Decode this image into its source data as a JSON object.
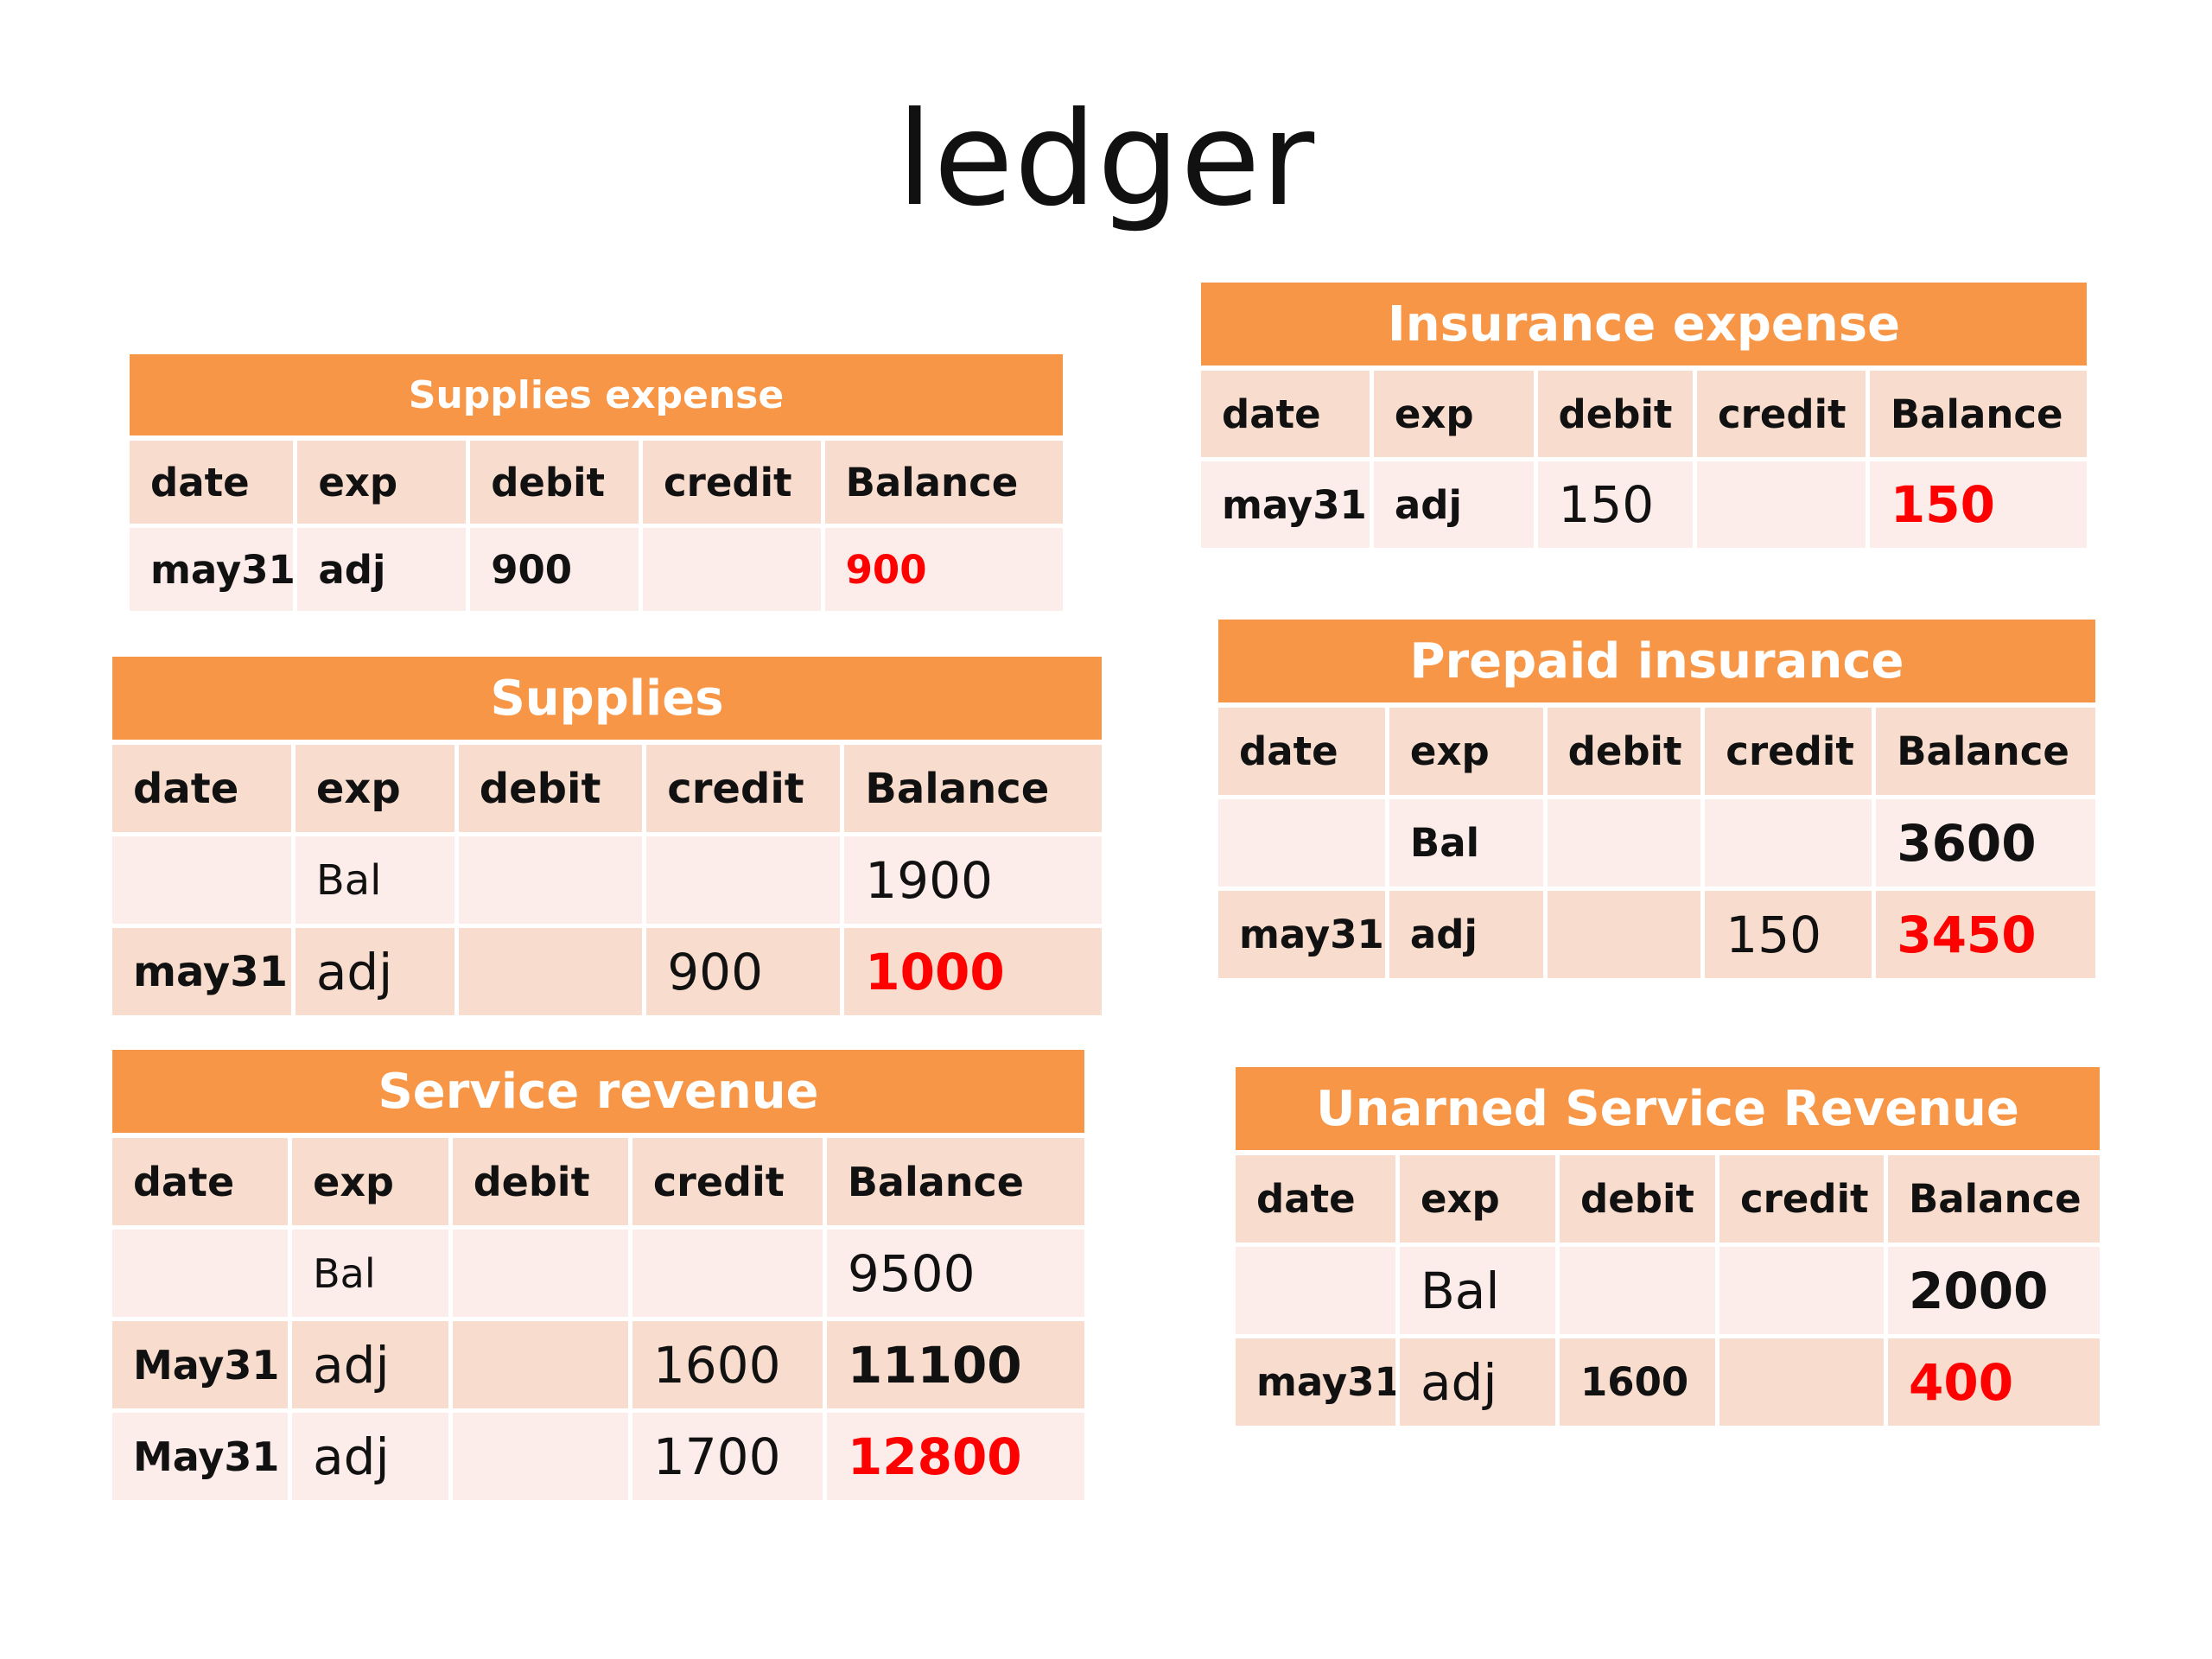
{
  "title": "ledger",
  "columns": [
    "date",
    "exp",
    "debit",
    "credit",
    "Balance"
  ],
  "colors": {
    "header": "#f79646",
    "row_dark": "#f8dccd",
    "row_light": "#fcecea",
    "highlight": "#ff0000"
  },
  "supplies_expense": {
    "title": "Supplies expense",
    "rows": [
      {
        "date": "may31",
        "exp": "adj",
        "debit": "900",
        "credit": "",
        "balance": "900"
      }
    ]
  },
  "supplies": {
    "title": "Supplies",
    "rows": [
      {
        "date": "",
        "exp": "Bal",
        "debit": "",
        "credit": "",
        "balance": "1900"
      },
      {
        "date": "may31",
        "exp": "adj",
        "debit": "",
        "credit": "900",
        "balance": "1000"
      }
    ]
  },
  "service_revenue": {
    "title": "Service revenue",
    "rows": [
      {
        "date": "",
        "exp": "Bal",
        "debit": "",
        "credit": "",
        "balance": "9500"
      },
      {
        "date": "May31",
        "exp": "adj",
        "debit": "",
        "credit": "1600",
        "balance": "11100"
      },
      {
        "date": "May31",
        "exp": "adj",
        "debit": "",
        "credit": "1700",
        "balance": "12800"
      }
    ]
  },
  "insurance_expense": {
    "title": "Insurance expense",
    "rows": [
      {
        "date": "may31",
        "exp": "adj",
        "debit": "150",
        "credit": "",
        "balance": "150"
      }
    ]
  },
  "prepaid_insurance": {
    "title": "Prepaid insurance",
    "rows": [
      {
        "date": "",
        "exp": "Bal",
        "debit": "",
        "credit": "",
        "balance": "3600"
      },
      {
        "date": "may31",
        "exp": "adj",
        "debit": "",
        "credit": "150",
        "balance": "3450"
      }
    ]
  },
  "unearned_service_revenue": {
    "title": "Unarned Service Revenue",
    "rows": [
      {
        "date": "",
        "exp": "Bal",
        "debit": "",
        "credit": "",
        "balance": "2000"
      },
      {
        "date": "may31",
        "exp": "adj",
        "debit": "1600",
        "credit": "",
        "balance": "400"
      }
    ]
  }
}
